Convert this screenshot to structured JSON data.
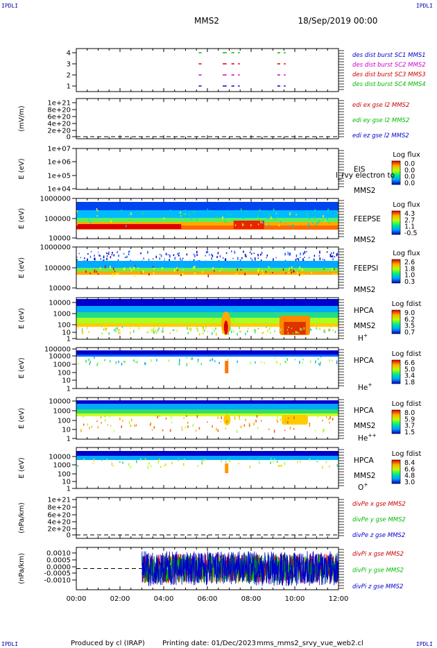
{
  "header": {
    "title": "MMS2",
    "date": "18/Sep/2019 00:00",
    "corner_label": "IPDLI"
  },
  "footer": {
    "produced_by": "Produced by cl (IRAP)",
    "printing_date": "Printing date: 01/Dec/2023",
    "filename": "mms_mms2_srvy_vue_web2.cl"
  },
  "chart_data": {
    "type": "heatmap",
    "x_axis": {
      "range_hours": [
        0,
        12
      ],
      "tick_labels": [
        "00:00",
        "02:00",
        "04:00",
        "06:00",
        "08:00",
        "10:00",
        "12:00"
      ]
    },
    "panels": [
      {
        "id": "dist-burst",
        "type": "scatter",
        "ylabel": "",
        "y_tick_labels": [
          "4",
          "3",
          "2",
          "1"
        ],
        "legend": [
          {
            "text": "des dist burst SC1 MMS1",
            "color": "#0000cc"
          },
          {
            "text": "des dist burst SC2 MMS2",
            "color": "#cc00cc"
          },
          {
            "text": "des dist burst SC3 MMS3",
            "color": "#cc0000"
          },
          {
            "text": "des dist burst SC4 MMS4",
            "color": "#00bb00"
          }
        ],
        "bursts": [
          {
            "sc": 4,
            "intervals": [
              [
                5.6,
                5.7
              ],
              [
                6.7,
                6.85
              ],
              [
                7.1,
                7.2
              ],
              [
                7.4,
                7.45
              ],
              [
                9.2,
                9.3
              ],
              [
                9.5,
                9.55
              ]
            ]
          },
          {
            "sc": 3,
            "intervals": [
              [
                5.6,
                5.7
              ],
              [
                6.7,
                6.85
              ],
              [
                7.1,
                7.2
              ],
              [
                7.4,
                7.45
              ],
              [
                9.2,
                9.3
              ],
              [
                9.5,
                9.55
              ]
            ]
          },
          {
            "sc": 2,
            "intervals": [
              [
                5.6,
                5.7
              ],
              [
                6.7,
                6.85
              ],
              [
                7.1,
                7.2
              ],
              [
                7.4,
                7.45
              ],
              [
                9.2,
                9.3
              ],
              [
                9.5,
                9.55
              ]
            ]
          },
          {
            "sc": 1,
            "intervals": [
              [
                5.6,
                5.7
              ],
              [
                6.7,
                6.85
              ],
              [
                7.1,
                7.2
              ],
              [
                7.4,
                7.45
              ],
              [
                9.2,
                9.3
              ],
              [
                9.5,
                9.55
              ]
            ]
          }
        ]
      },
      {
        "id": "edi-e",
        "type": "line",
        "ylabel": "(mV/m)",
        "y_tick_labels": [
          "1e+21",
          "8e+20",
          "6e+20",
          "4e+20",
          "2e+20",
          "0"
        ],
        "legend": [
          {
            "text": "edi ex gse l2 MMS2",
            "color": "#cc0000"
          },
          {
            "text": "edi ey gse l2 MMS2",
            "color": "#00bb00"
          },
          {
            "text": "edi ez gse l2 MMS2",
            "color": "#0000cc"
          }
        ]
      },
      {
        "id": "eis",
        "type": "heatmap",
        "ylabel": "E (eV)",
        "y_tick_labels": [
          "1e+07",
          "1e+06",
          "1e+05",
          "1e+04"
        ],
        "instrument": "EIS",
        "spacecraft": "MMS2",
        "overlay_text": "l_rvy electron to",
        "colorbar": {
          "title": "Log flux",
          "ticks": [
            "0.0",
            "0.0",
            "0.0",
            "0.0"
          ]
        }
      },
      {
        "id": "feepse",
        "type": "heatmap",
        "ylabel": "E (eV)",
        "y_tick_labels": [
          "1000000",
          "100000",
          "10000"
        ],
        "instrument": "FEEPSE",
        "spacecraft": "MMS2",
        "colorbar": {
          "title": "Log flux",
          "ticks": [
            "4.3",
            "2.7",
            "1.1",
            "-0.5"
          ]
        }
      },
      {
        "id": "feepsi",
        "type": "heatmap",
        "ylabel": "E (eV)",
        "y_tick_labels": [
          "1000000",
          "100000",
          "10000"
        ],
        "instrument": "FEEPSI",
        "spacecraft": "MMS2",
        "colorbar": {
          "title": "Log flux",
          "ticks": [
            "2.6",
            "1.8",
            "1.0",
            "0.3"
          ]
        }
      },
      {
        "id": "hpca-h",
        "type": "heatmap",
        "ylabel": "E (eV)",
        "y_tick_labels": [
          "10000",
          "1000",
          "100",
          "10",
          "1"
        ],
        "instrument": "HPCA",
        "spacecraft": "MMS2",
        "species": "H",
        "charge": "+",
        "colorbar": {
          "title": "Log fdist",
          "ticks": [
            "9.0",
            "6.2",
            "3.5",
            "0.7"
          ]
        }
      },
      {
        "id": "hpca-he",
        "type": "heatmap",
        "ylabel": "E (eV)",
        "y_tick_labels": [
          "100000",
          "10000",
          "1000",
          "100",
          "10",
          "1"
        ],
        "instrument": "HPCA",
        "spacecraft": "",
        "species": "He",
        "charge": "+",
        "colorbar": {
          "title": "Log fdist",
          "ticks": [
            "6.6",
            "5.0",
            "3.4",
            "1.8"
          ]
        }
      },
      {
        "id": "hpca-hepp",
        "type": "heatmap",
        "ylabel": "E (eV)",
        "y_tick_labels": [
          "10000",
          "1000",
          "100",
          "10",
          "1"
        ],
        "instrument": "HPCA",
        "spacecraft": "MMS2",
        "species": "He",
        "charge": "++",
        "colorbar": {
          "title": "Log fdist",
          "ticks": [
            "8.0",
            "5.9",
            "3.7",
            "1.5"
          ]
        }
      },
      {
        "id": "hpca-o",
        "type": "heatmap",
        "ylabel": "E (eV)",
        "y_tick_labels": [
          "10000",
          "1000",
          "100",
          "10",
          "1"
        ],
        "instrument": "HPCA",
        "spacecraft": "MMS2",
        "species": "O",
        "charge": "+",
        "colorbar": {
          "title": "Log fdist",
          "ticks": [
            "8.4",
            "6.6",
            "4.8",
            "3.0"
          ]
        }
      },
      {
        "id": "divpe",
        "type": "line",
        "ylabel": "(nPa/km)",
        "y_tick_labels": [
          "1e+21",
          "8e+20",
          "6e+20",
          "4e+20",
          "2e+20",
          "0"
        ],
        "legend": [
          {
            "text": "divPe x gse MMS2",
            "color": "#cc0000"
          },
          {
            "text": "divPe y gse MMS2",
            "color": "#00bb00"
          },
          {
            "text": "divPe z gse MMS2",
            "color": "#0000cc"
          }
        ]
      },
      {
        "id": "divpi",
        "type": "line",
        "ylabel": "(nPa/km)",
        "y_tick_labels": [
          "0.0010",
          "0.0005",
          "0.0000",
          "-0.0005",
          "-0.0010"
        ],
        "ylim": [
          -0.0013,
          0.0013
        ],
        "data_start_hour": 3.0,
        "legend": [
          {
            "text": "divPi x gse MMS2",
            "color": "#cc0000"
          },
          {
            "text": "divPi y gse MMS2",
            "color": "#00bb00"
          },
          {
            "text": "divPi z gse MMS2",
            "color": "#0000cc"
          }
        ]
      }
    ]
  }
}
